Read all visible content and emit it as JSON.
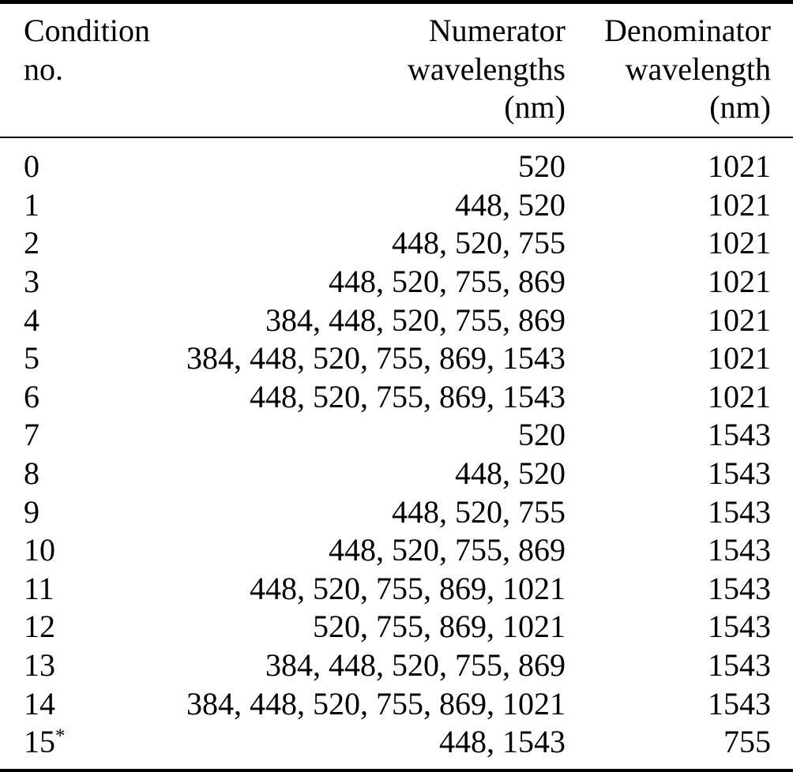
{
  "chart_data": {
    "type": "table",
    "columns": [
      {
        "id": "condition",
        "align": "left",
        "lines": [
          "Condition",
          "no."
        ]
      },
      {
        "id": "numerator",
        "align": "right",
        "lines": [
          "Numerator",
          "wavelengths",
          "(nm)"
        ]
      },
      {
        "id": "denominator",
        "align": "right",
        "lines": [
          "Denominator",
          "wavelength",
          "(nm)"
        ]
      }
    ],
    "rows": [
      {
        "no": "0",
        "no_sup": "",
        "numerator": "520",
        "denominator": "1021"
      },
      {
        "no": "1",
        "no_sup": "",
        "numerator": "448, 520",
        "denominator": "1021"
      },
      {
        "no": "2",
        "no_sup": "",
        "numerator": "448, 520, 755",
        "denominator": "1021"
      },
      {
        "no": "3",
        "no_sup": "",
        "numerator": "448, 520, 755, 869",
        "denominator": "1021"
      },
      {
        "no": "4",
        "no_sup": "",
        "numerator": "384, 448, 520, 755, 869",
        "denominator": "1021"
      },
      {
        "no": "5",
        "no_sup": "",
        "numerator": "384, 448, 520, 755, 869, 1543",
        "denominator": "1021"
      },
      {
        "no": "6",
        "no_sup": "",
        "numerator": "448, 520, 755, 869, 1543",
        "denominator": "1021"
      },
      {
        "no": "7",
        "no_sup": "",
        "numerator": "520",
        "denominator": "1543"
      },
      {
        "no": "8",
        "no_sup": "",
        "numerator": "448, 520",
        "denominator": "1543"
      },
      {
        "no": "9",
        "no_sup": "",
        "numerator": "448, 520, 755",
        "denominator": "1543"
      },
      {
        "no": "10",
        "no_sup": "",
        "numerator": "448, 520, 755, 869",
        "denominator": "1543"
      },
      {
        "no": "11",
        "no_sup": "",
        "numerator": "448, 520, 755, 869, 1021",
        "denominator": "1543"
      },
      {
        "no": "12",
        "no_sup": "",
        "numerator": "520, 755, 869, 1021",
        "denominator": "1543"
      },
      {
        "no": "13",
        "no_sup": "",
        "numerator": "384, 448, 520, 755, 869",
        "denominator": "1543"
      },
      {
        "no": "14",
        "no_sup": "",
        "numerator": "384, 448, 520, 755, 869, 1021",
        "denominator": "1543"
      },
      {
        "no": "15",
        "no_sup": "*",
        "numerator": "448, 1543",
        "denominator": "755"
      }
    ]
  },
  "colors": {
    "text": "#000000",
    "background": "#ffffff",
    "rule": "#000000"
  }
}
